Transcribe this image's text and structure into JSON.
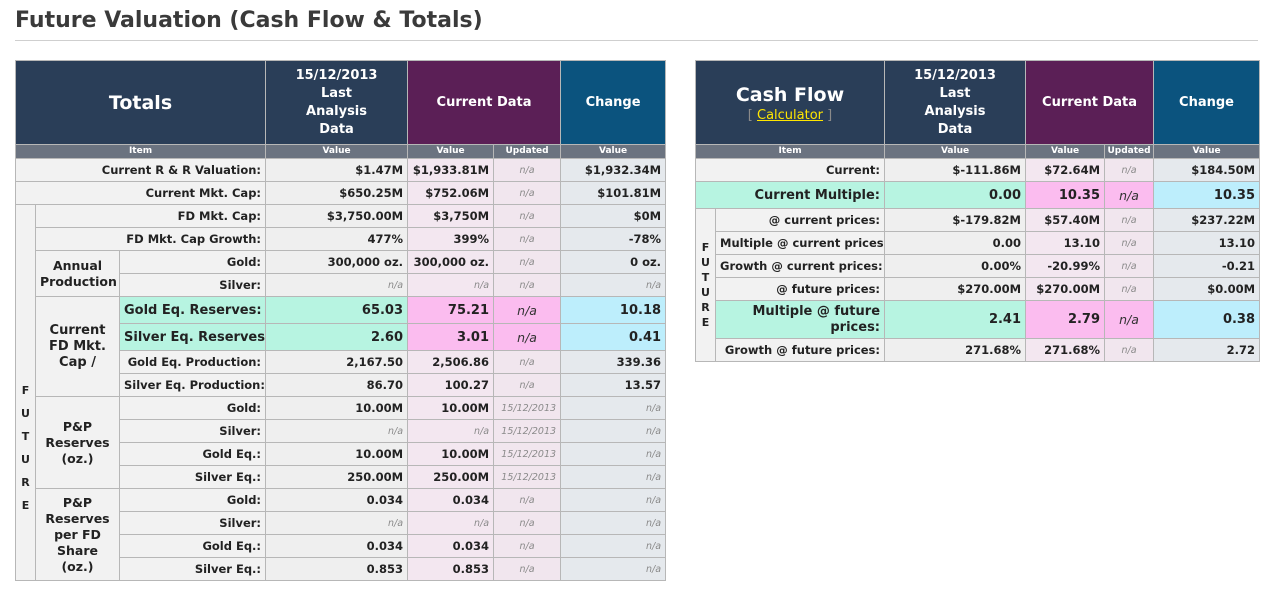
{
  "page": {
    "title": "Future Valuation (Cash Flow & Totals)"
  },
  "totals": {
    "header": {
      "title": "Totals",
      "date_col": [
        "15/12/2013",
        "Last",
        "Analysis",
        "Data"
      ],
      "current": "Current Data",
      "change": "Change"
    },
    "sub": {
      "item": "Item",
      "value1": "Value",
      "value2": "Value",
      "updated": "Updated",
      "value3": "Value"
    },
    "groups": {
      "future": [
        "F",
        "U",
        "T",
        "U",
        "R",
        "E"
      ],
      "annual_production": "Annual Production",
      "current_fd": "Current FD Mkt. Cap /",
      "pp_reserves": "P&P Reserves (oz.)",
      "pp_per_share": "P&P Reserves per FD Share (oz.)"
    },
    "rows": [
      {
        "label": "Current R & R Valuation:",
        "v1": "$1.47M",
        "v2": "$1,933.81M",
        "upd": "n/a",
        "chg": "$1,932.34M"
      },
      {
        "label": "Current Mkt. Cap:",
        "v1": "$650.25M",
        "v2": "$752.06M",
        "upd": "n/a",
        "chg": "$101.81M"
      },
      {
        "label": "FD Mkt. Cap:",
        "v1": "$3,750.00M",
        "v2": "$3,750M",
        "upd": "n/a",
        "chg": "$0M"
      },
      {
        "label": "FD Mkt. Cap Growth:",
        "v1": "477%",
        "v2": "399%",
        "upd": "n/a",
        "chg": "-78%"
      },
      {
        "label": "Gold:",
        "v1": "300,000 oz.",
        "v2": "300,000 oz.",
        "upd": "n/a",
        "chg": "0 oz."
      },
      {
        "label": "Silver:",
        "v1": "n/a",
        "v2": "n/a",
        "upd": "n/a",
        "chg": "n/a"
      },
      {
        "label": "Gold Eq. Reserves:",
        "v1": "65.03",
        "v2": "75.21",
        "upd": "n/a",
        "chg": "10.18"
      },
      {
        "label": "Silver Eq. Reserves:",
        "v1": "2.60",
        "v2": "3.01",
        "upd": "n/a",
        "chg": "0.41"
      },
      {
        "label": "Gold Eq. Production:",
        "v1": "2,167.50",
        "v2": "2,506.86",
        "upd": "n/a",
        "chg": "339.36"
      },
      {
        "label": "Silver Eq. Production:",
        "v1": "86.70",
        "v2": "100.27",
        "upd": "n/a",
        "chg": "13.57"
      },
      {
        "label": "Gold:",
        "v1": "10.00M",
        "v2": "10.00M",
        "upd": "15/12/2013",
        "chg": "n/a"
      },
      {
        "label": "Silver:",
        "v1": "n/a",
        "v2": "n/a",
        "upd": "15/12/2013",
        "chg": "n/a"
      },
      {
        "label": "Gold Eq.:",
        "v1": "10.00M",
        "v2": "10.00M",
        "upd": "15/12/2013",
        "chg": "n/a"
      },
      {
        "label": "Silver Eq.:",
        "v1": "250.00M",
        "v2": "250.00M",
        "upd": "15/12/2013",
        "chg": "n/a"
      },
      {
        "label": "Gold:",
        "v1": "0.034",
        "v2": "0.034",
        "upd": "n/a",
        "chg": "n/a"
      },
      {
        "label": "Silver:",
        "v1": "n/a",
        "v2": "n/a",
        "upd": "n/a",
        "chg": "n/a"
      },
      {
        "label": "Gold Eq.:",
        "v1": "0.034",
        "v2": "0.034",
        "upd": "n/a",
        "chg": "n/a"
      },
      {
        "label": "Silver Eq.:",
        "v1": "0.853",
        "v2": "0.853",
        "upd": "n/a",
        "chg": "n/a"
      }
    ]
  },
  "cashflow": {
    "header": {
      "title": "Cash Flow",
      "calc_open": "[ ",
      "calc_link": "Calculator",
      "calc_close": " ]",
      "date_col": [
        "15/12/2013",
        "Last",
        "Analysis",
        "Data"
      ],
      "current": "Current Data",
      "change": "Change"
    },
    "sub": {
      "item": "Item",
      "value1": "Value",
      "value2": "Value",
      "updated": "Updated",
      "value3": "Value"
    },
    "future": [
      "F",
      "U",
      "T",
      "U",
      "R",
      "E"
    ],
    "rows": [
      {
        "label": "Current:",
        "v1": "$-111.86M",
        "v2": "$72.64M",
        "upd": "n/a",
        "chg": "$184.50M"
      },
      {
        "label": "Current Multiple:",
        "v1": "0.00",
        "v2": "10.35",
        "upd": "n/a",
        "chg": "10.35"
      },
      {
        "label": "@ current prices:",
        "v1": "$-179.82M",
        "v2": "$57.40M",
        "upd": "n/a",
        "chg": "$237.22M"
      },
      {
        "label": "Multiple @ current prices:",
        "v1": "0.00",
        "v2": "13.10",
        "upd": "n/a",
        "chg": "13.10"
      },
      {
        "label": "Growth @ current prices:",
        "v1": "0.00%",
        "v2": "-20.99%",
        "upd": "n/a",
        "chg": "-0.21"
      },
      {
        "label": "@ future prices:",
        "v1": "$270.00M",
        "v2": "$270.00M",
        "upd": "n/a",
        "chg": "$0.00M"
      },
      {
        "label": "Multiple @ future prices:",
        "v1": "2.41",
        "v2": "2.79",
        "upd": "n/a",
        "chg": "0.38"
      },
      {
        "label": "Growth @ future prices:",
        "v1": "271.68%",
        "v2": "271.68%",
        "upd": "n/a",
        "chg": "2.72"
      }
    ]
  }
}
